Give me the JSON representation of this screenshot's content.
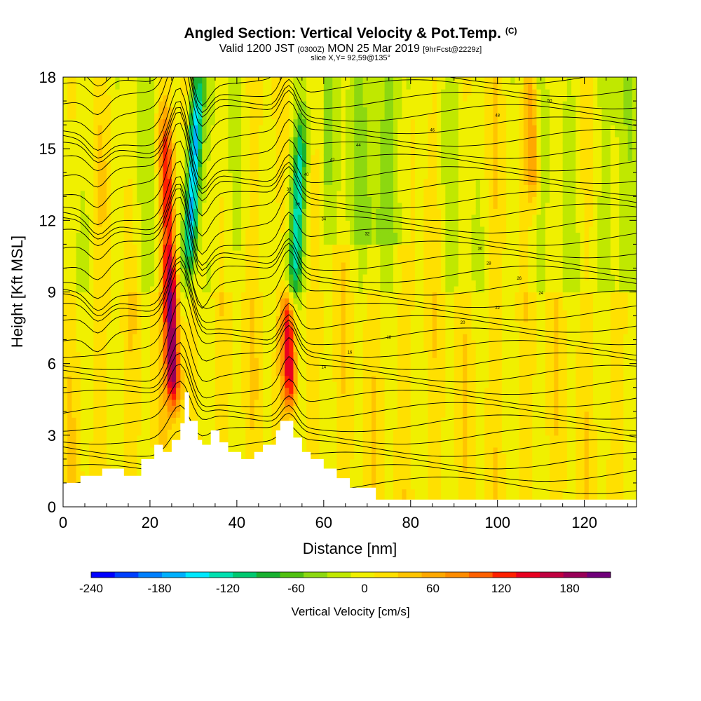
{
  "header": {
    "title": "Angled Section: Vertical Velocity & Pot.Temp.",
    "title_mark": "(C)",
    "valid_prefix": "Valid 1200 JST",
    "valid_utc": "(0300Z)",
    "valid_date": "MON 25 Mar 2019",
    "valid_fcst": "[9hrFcst@2229z]",
    "slice": "slice X,Y= 92,59@135°"
  },
  "chart_data": {
    "type": "heatmap",
    "xlabel": "Distance [nm]",
    "ylabel": "Height [Kft MSL]",
    "xlim": [
      0,
      132
    ],
    "ylim": [
      0,
      18
    ],
    "x_ticks": [
      0,
      20,
      40,
      60,
      80,
      100,
      120
    ],
    "y_ticks": [
      0,
      3,
      6,
      9,
      12,
      15,
      18
    ],
    "colorbar": {
      "label": "Vertical Velocity [cm/s]",
      "range": [
        -240,
        216
      ],
      "tick_values": [
        -240,
        -180,
        -120,
        -60,
        0,
        60,
        120,
        180
      ],
      "colors": [
        "#0000ff",
        "#0040ff",
        "#0080ff",
        "#00b0ff",
        "#00e8ff",
        "#00e0b0",
        "#00c870",
        "#18b030",
        "#50c010",
        "#8cd810",
        "#c0e800",
        "#f0f000",
        "#ffe000",
        "#ffc400",
        "#ffa800",
        "#ff8c00",
        "#ff6000",
        "#ff2000",
        "#e80020",
        "#c00040",
        "#980058",
        "#70007a"
      ]
    },
    "vertical_velocity_features": [
      {
        "name": "updraft",
        "x": 25,
        "height_range": [
          4.5,
          10
        ],
        "value": 200
      },
      {
        "name": "updraft",
        "x": 24,
        "height_range": [
          10,
          16
        ],
        "value": 130
      },
      {
        "name": "downdraft",
        "x": 30,
        "height_range": [
          10,
          18
        ],
        "value": -190
      },
      {
        "name": "updraft",
        "x": 52,
        "height_range": [
          4.5,
          8.5
        ],
        "value": 140
      },
      {
        "name": "downdraft",
        "x": 54,
        "height_range": [
          9,
          16
        ],
        "value": -110
      },
      {
        "name": "updraft",
        "x": 108,
        "height_range": [
          13,
          18
        ],
        "value": 80
      }
    ],
    "contour_labels": [
      "14",
      "16",
      "18",
      "20",
      "22",
      "24",
      "26",
      "28",
      "30",
      "32",
      "34",
      "36",
      "38",
      "40",
      "42",
      "44",
      "46",
      "48",
      "50"
    ],
    "terrain_profile": {
      "x": [
        0,
        4,
        4,
        9,
        9,
        14,
        14,
        18,
        18,
        21,
        21,
        23,
        23,
        25,
        25,
        27,
        27,
        28,
        28,
        29,
        29,
        31,
        31,
        32,
        32,
        34,
        34,
        36,
        36,
        38,
        38,
        41,
        41,
        44,
        44,
        46,
        46,
        49,
        49,
        50,
        50,
        53,
        53,
        55,
        55,
        57,
        57,
        60,
        60,
        63,
        63,
        66,
        66,
        72,
        72,
        132
      ],
      "height": [
        1.0,
        1.0,
        1.3,
        1.3,
        1.6,
        1.6,
        1.3,
        1.3,
        2.0,
        2.0,
        2.6,
        2.6,
        2.3,
        2.3,
        2.8,
        2.8,
        3.5,
        3.5,
        4.8,
        4.8,
        3.6,
        3.6,
        2.8,
        2.8,
        2.6,
        2.6,
        3.2,
        3.2,
        2.7,
        2.7,
        2.3,
        2.3,
        2.0,
        2.0,
        2.3,
        2.3,
        2.6,
        2.6,
        3.2,
        3.2,
        3.6,
        3.6,
        2.9,
        2.9,
        2.3,
        2.3,
        2.0,
        2.0,
        1.6,
        1.6,
        1.2,
        1.2,
        0.8,
        0.8,
        0.3,
        0.3
      ]
    }
  }
}
